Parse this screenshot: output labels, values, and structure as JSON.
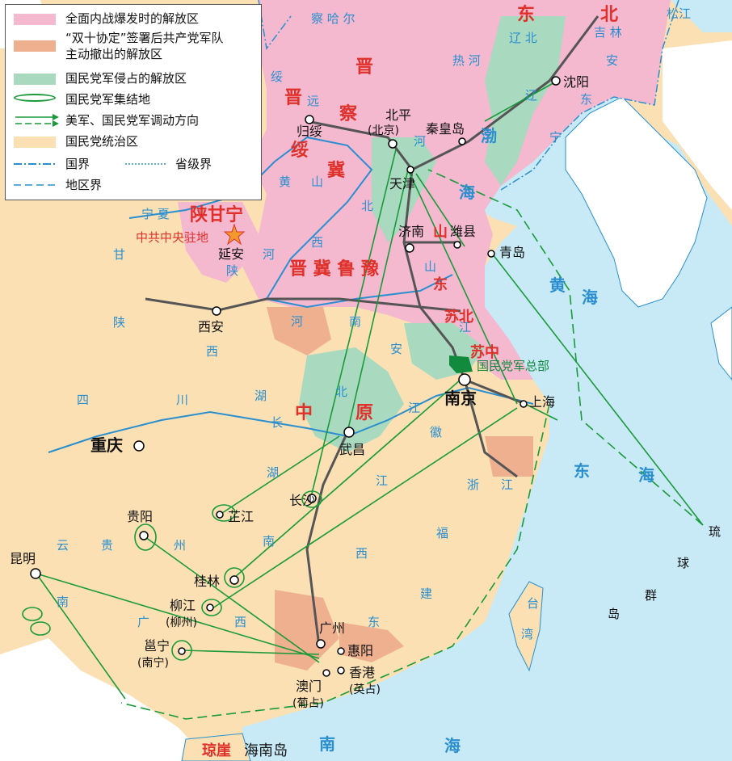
{
  "legend": {
    "liberated_outbreak": "全面内战爆发时的解放区",
    "withdrawn_line1": "“双十协定”签署后共产党军队",
    "withdrawn_line2": "主动撤出的解放区",
    "occupied": "国民党军侵占的解放区",
    "assembly": "国民党军集结地",
    "movement": "美军、国民党军调动方向",
    "kmt_area": "国民党统治区",
    "national_border": "国界",
    "provincial_border": "省级界",
    "region_border": "地区界"
  },
  "colors": {
    "liberated": "#f4b8cf",
    "withdrawn": "#efb08f",
    "occupied": "#a9d9bf",
    "kmt": "#fbe0b4",
    "sea": "#c8e9f6",
    "foreign": "#ffffff",
    "arrow": "#1a9a3a",
    "border": "#2a8fcf",
    "hq": "#128a3e"
  },
  "map_labels": {
    "cities": {
      "shenyang": "沈阳",
      "beiping": "北平",
      "beiping_note": "(北京)",
      "qinhuangdao": "秦皇岛",
      "tianjin": "天津",
      "guisui": "归绥",
      "jinan": "济南",
      "weixian": "潍县",
      "qingdao": "青岛",
      "yanan": "延安",
      "xian": "西安",
      "nanjing": "南京",
      "shanghai": "上海",
      "wuchang": "武昌",
      "chongqing": "重庆",
      "changsha": "长沙",
      "zhijiang": "芷江",
      "guiyang": "贵阳",
      "kunming": "昆明",
      "guilin": "桂林",
      "liujiang": "柳江",
      "liujiang_note": "(柳州)",
      "yongning": "邕宁",
      "yongning_note": "(南宁)",
      "guangzhou": "广州",
      "huiyang": "惠阳",
      "hongkong": "香港",
      "hongkong_note": "(英占)",
      "macao": "澳门",
      "macao_note": "(葡占)",
      "qiongya": "琼崖",
      "hainan": "海南岛"
    },
    "regions_red": {
      "dongbei_1": "东",
      "dongbei_2": "北",
      "jin": "晋",
      "jin2": "晋",
      "cha": "察",
      "sui": "绥",
      "ji": "冀",
      "shaanganning": "陕甘宁",
      "jijilu": "晋 冀 鲁 豫",
      "shandong_1": "山",
      "shandong_2": "东",
      "subei": "苏北",
      "suzhong": "苏中",
      "zhongyuan_1": "中",
      "zhongyuan_2": "原",
      "hq_note": "中共中央驻地",
      "kmt_hq": "国民党军总部"
    },
    "provinces": {
      "chahaer": "察 哈 尔",
      "rehe": "热 河",
      "liaobei": "辽 北",
      "jilin": "吉 林",
      "songjiang": "松江",
      "andong": "安",
      "andong2": "东",
      "liaoning1": "辽",
      "liaoning2": "宁",
      "suiyuan": "绥",
      "suiyuan2": "远",
      "ningxia": "宁 夏",
      "gansu": "甘",
      "hebei1": "河",
      "hebei2": "北",
      "shanxi1": "山",
      "shanxi2": "西",
      "shaanxi": "陕",
      "henan1": "河",
      "henan2": "南",
      "anhui1": "安",
      "anhui2": "徽",
      "jiangsu": "江",
      "zhejiang1": "浙",
      "zhejiang2": "江",
      "sichuan1": "四",
      "sichuan2": "川",
      "hubei1": "湖",
      "hubei2": "北",
      "hunan1": "湖",
      "hunan2": "南",
      "jiangxi1": "江",
      "jiangxi2": "西",
      "fujian1": "福",
      "fujian2": "建",
      "guangdong1": "广",
      "guangdong2": "东",
      "guangxi1": "广",
      "guangxi2": "西",
      "guizhou1": "贵",
      "guizhou2": "州",
      "yunnan1": "云",
      "yunnan2": "南",
      "shaanxi2a": "陕",
      "shaanxi2b": "西",
      "shandong_p": "山",
      "taiwan1": "台",
      "taiwan2": "湾",
      "ryukyu1": "琉",
      "ryukyu2": "球",
      "ryukyu3": "群",
      "ryukyu4": "岛",
      "changjiang1": "长",
      "changjiang2": "江",
      "huanghe1": "黄",
      "huanghe2": "河"
    },
    "seas": {
      "bohai1": "渤",
      "bohai2": "海",
      "huanghai1": "黄",
      "huanghai2": "海",
      "donghai1": "东",
      "donghai2": "海",
      "nanhai1": "南",
      "nanhai2": "海"
    }
  }
}
